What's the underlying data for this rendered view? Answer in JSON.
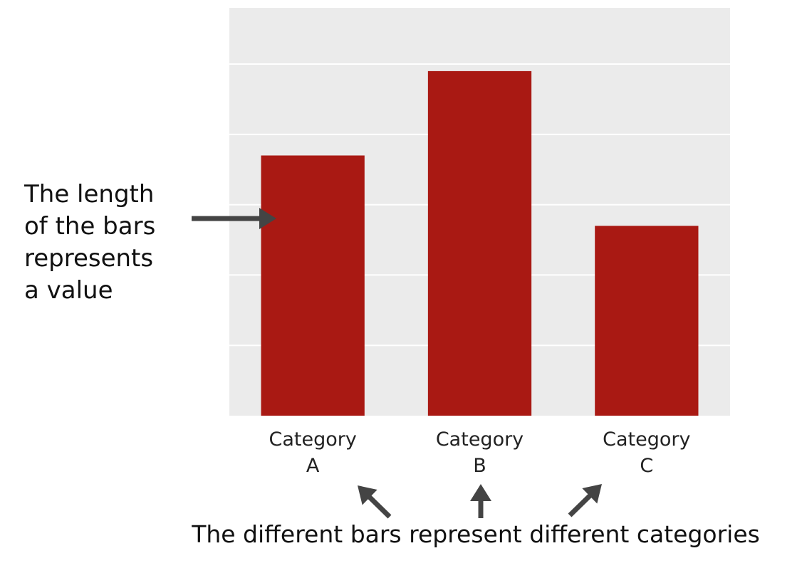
{
  "chart_data": {
    "type": "bar",
    "categories": [
      [
        "Category",
        "A"
      ],
      [
        "Category",
        "B"
      ],
      [
        "Category",
        "C"
      ]
    ],
    "values": [
      3.7,
      4.9,
      2.7
    ],
    "ylim": [
      0,
      5.8
    ],
    "gridlines": [
      1,
      2,
      3,
      4,
      5
    ],
    "bar_color": "#a91913",
    "panel_color": "#ebebeb",
    "grid_color": "#ffffff",
    "axis_tick_labels_shown": false,
    "grid": true
  },
  "annotations": {
    "left_lines": [
      "The length",
      "of the bars",
      "represents",
      "a value"
    ],
    "bottom_text": "The different bars represent different categories",
    "arrow_color": "#444444"
  }
}
